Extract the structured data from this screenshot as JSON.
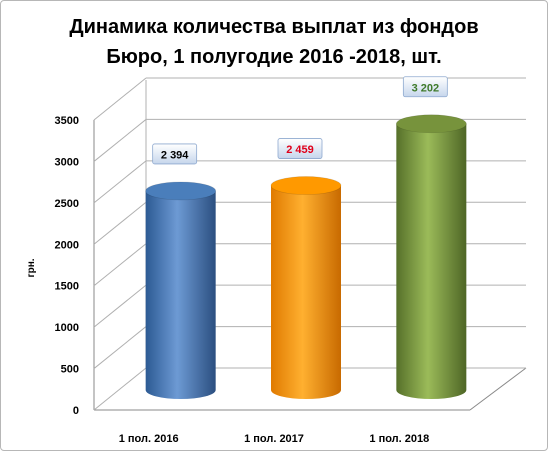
{
  "chart_data": {
    "type": "bar",
    "title_line1": "Динамика количества выплат из фондов",
    "title_line2": "Бюро, 1 полугодие 2016 -2018, шт.",
    "ylabel": "грн.",
    "ylim": [
      0,
      3500
    ],
    "yticks": [
      0,
      500,
      1000,
      1500,
      2000,
      2500,
      3000,
      3500
    ],
    "grid": true,
    "categories": [
      "1 пол. 2016",
      "1 пол. 2017",
      "1 пол. 2018"
    ],
    "values": [
      2394,
      2459,
      3202
    ],
    "data_labels": [
      "2 394",
      "2 459",
      "3 202"
    ],
    "colors": [
      "#4a7ebb",
      "#ff9900",
      "#77933c"
    ],
    "label_colors": [
      "#000000",
      "#e0001a",
      "#3f7a2a"
    ]
  }
}
